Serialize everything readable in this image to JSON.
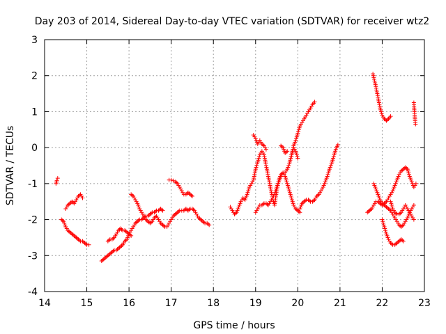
{
  "chart_data": {
    "type": "scatter",
    "title": "Day 203 of 2014, Sidereal Day-to-day VTEC variation (SDTVAR) for receiver wtz2",
    "xlabel": "GPS time / hours",
    "ylabel": "SDTVAR / TECUs",
    "xlim": [
      14,
      23
    ],
    "ylim": [
      -4,
      3
    ],
    "xticks": [
      "14",
      "15",
      "16",
      "17",
      "18",
      "19",
      "20",
      "21",
      "22",
      "23"
    ],
    "yticks": [
      "-4",
      "-3",
      "-2",
      "-1",
      "0",
      "1",
      "2",
      "3"
    ],
    "grid": true,
    "marker": "+",
    "color": "#ff0000",
    "series": [
      {
        "name": "s1",
        "x": [
          14.27,
          14.29,
          14.31
        ],
        "y": [
          -1.0,
          -0.92,
          -0.85
        ]
      },
      {
        "name": "s2",
        "x": [
          14.4,
          14.45,
          14.5,
          14.55,
          14.6,
          14.65,
          14.7,
          14.75,
          14.8,
          14.85,
          14.9,
          14.95,
          15.0,
          15.05
        ],
        "y": [
          -2.0,
          -2.05,
          -2.2,
          -2.3,
          -2.35,
          -2.4,
          -2.45,
          -2.5,
          -2.55,
          -2.6,
          -2.6,
          -2.65,
          -2.7,
          -2.7
        ]
      },
      {
        "name": "s3",
        "x": [
          14.5,
          14.55,
          14.6,
          14.65,
          14.7,
          14.75,
          14.8,
          14.85,
          14.9
        ],
        "y": [
          -1.7,
          -1.6,
          -1.55,
          -1.5,
          -1.55,
          -1.45,
          -1.35,
          -1.3,
          -1.4
        ]
      },
      {
        "name": "s4",
        "x": [
          15.35,
          15.4,
          15.45,
          15.5,
          15.55,
          15.6,
          15.65,
          15.7,
          15.75,
          15.8,
          15.85,
          15.9,
          15.95,
          16.0,
          16.05,
          16.1,
          16.15,
          16.2,
          16.25,
          16.3,
          16.35,
          16.4,
          16.45,
          16.5,
          16.55,
          16.6,
          16.65,
          16.7,
          16.75,
          16.8
        ],
        "y": [
          -3.15,
          -3.1,
          -3.05,
          -3.0,
          -2.95,
          -2.9,
          -2.85,
          -2.85,
          -2.8,
          -2.75,
          -2.7,
          -2.6,
          -2.55,
          -2.4,
          -2.3,
          -2.2,
          -2.1,
          -2.05,
          -2.0,
          -2.0,
          -1.95,
          -1.9,
          -1.9,
          -1.85,
          -1.8,
          -1.8,
          -1.75,
          -1.75,
          -1.7,
          -1.75
        ]
      },
      {
        "name": "s5",
        "x": [
          15.5,
          15.55,
          15.6,
          15.65,
          15.7,
          15.75,
          15.8,
          15.85,
          15.9,
          15.95,
          16.0,
          16.05
        ],
        "y": [
          -2.6,
          -2.55,
          -2.55,
          -2.5,
          -2.4,
          -2.3,
          -2.25,
          -2.3,
          -2.3,
          -2.35,
          -2.4,
          -2.45
        ]
      },
      {
        "name": "s6",
        "x": [
          16.05,
          16.1,
          16.15,
          16.2,
          16.25,
          16.3,
          16.35,
          16.4,
          16.45,
          16.5,
          16.55,
          16.6,
          16.65,
          16.7,
          16.75,
          16.8,
          16.85,
          16.9,
          16.95,
          17.0,
          17.05,
          17.1,
          17.15,
          17.2,
          17.25,
          17.3,
          17.35,
          17.4,
          17.45,
          17.5,
          17.55,
          17.6,
          17.65,
          17.7,
          17.75,
          17.8,
          17.85,
          17.9
        ],
        "y": [
          -1.3,
          -1.35,
          -1.45,
          -1.55,
          -1.7,
          -1.8,
          -1.9,
          -2.0,
          -2.05,
          -2.1,
          -2.05,
          -1.95,
          -1.9,
          -2.0,
          -2.1,
          -2.15,
          -2.2,
          -2.2,
          -2.1,
          -2.0,
          -1.9,
          -1.85,
          -1.8,
          -1.75,
          -1.75,
          -1.75,
          -1.7,
          -1.75,
          -1.7,
          -1.7,
          -1.75,
          -1.85,
          -1.95,
          -2.0,
          -2.05,
          -2.1,
          -2.1,
          -2.15
        ]
      },
      {
        "name": "s7",
        "x": [
          16.95,
          17.0,
          17.05,
          17.1,
          17.15,
          17.2,
          17.25,
          17.3,
          17.35,
          17.4,
          17.45,
          17.5
        ],
        "y": [
          -0.9,
          -0.9,
          -0.92,
          -0.95,
          -1.0,
          -1.1,
          -1.2,
          -1.3,
          -1.3,
          -1.25,
          -1.3,
          -1.35
        ]
      },
      {
        "name": "s8",
        "x": [
          18.4,
          18.45,
          18.5,
          18.55,
          18.6,
          18.65,
          18.7,
          18.75,
          18.8,
          18.85,
          18.9,
          18.95,
          19.0,
          19.05,
          19.1,
          19.15,
          19.2,
          19.25,
          19.3,
          19.35,
          19.4,
          19.45,
          19.5,
          19.55,
          19.6,
          19.65,
          19.7,
          19.75,
          19.8,
          19.85,
          19.9,
          19.95,
          20.0,
          20.05
        ],
        "y": [
          -1.65,
          -1.75,
          -1.85,
          -1.8,
          -1.65,
          -1.5,
          -1.4,
          -1.45,
          -1.3,
          -1.1,
          -1.0,
          -0.9,
          -0.6,
          -0.4,
          -0.2,
          -0.1,
          -0.2,
          -0.5,
          -0.8,
          -1.1,
          -1.4,
          -1.6,
          -1.2,
          -0.9,
          -0.75,
          -0.7,
          -0.8,
          -1.0,
          -1.2,
          -1.4,
          -1.6,
          -1.7,
          -1.75,
          -1.8
        ]
      },
      {
        "name": "s9",
        "x": [
          19.0,
          19.05,
          19.1,
          19.15,
          19.2,
          19.25,
          19.3,
          19.35,
          19.4,
          19.45,
          19.5,
          19.55,
          19.6,
          19.65,
          19.7,
          19.75,
          19.8,
          19.85,
          19.9,
          19.95,
          20.0
        ],
        "y": [
          -1.8,
          -1.7,
          -1.6,
          -1.6,
          -1.55,
          -1.55,
          -1.6,
          -1.5,
          -1.4,
          -1.3,
          -1.1,
          -0.95,
          -0.8,
          -0.7,
          -0.7,
          -0.6,
          -0.45,
          -0.2,
          0.0,
          -0.1,
          -0.3
        ]
      },
      {
        "name": "s10",
        "x": [
          18.95,
          19.0,
          19.05,
          19.1,
          19.15,
          19.2,
          19.25
        ],
        "y": [
          0.35,
          0.25,
          0.1,
          0.2,
          0.1,
          0.05,
          -0.05
        ]
      },
      {
        "name": "s11",
        "x": [
          19.6,
          19.65,
          19.7,
          19.75
        ],
        "y": [
          0.05,
          0.0,
          -0.15,
          -0.1
        ]
      },
      {
        "name": "s12",
        "x": [
          19.85,
          19.9,
          19.95,
          20.0,
          20.05,
          20.1,
          20.15,
          20.2,
          20.25,
          20.3,
          20.35,
          20.4
        ],
        "y": [
          -0.25,
          0.05,
          0.2,
          0.4,
          0.6,
          0.7,
          0.8,
          0.9,
          1.0,
          1.1,
          1.2,
          1.27
        ]
      },
      {
        "name": "s13",
        "x": [
          20.05,
          20.1,
          20.15,
          20.2,
          20.25,
          20.3,
          20.35,
          20.4,
          20.45,
          20.5,
          20.55,
          20.6,
          20.65,
          20.7,
          20.75,
          20.8,
          20.85,
          20.9,
          20.95
        ],
        "y": [
          -1.7,
          -1.55,
          -1.5,
          -1.45,
          -1.45,
          -1.5,
          -1.5,
          -1.45,
          -1.35,
          -1.3,
          -1.2,
          -1.1,
          -0.95,
          -0.8,
          -0.6,
          -0.45,
          -0.25,
          -0.05,
          0.08
        ]
      },
      {
        "name": "s14",
        "x": [
          21.65,
          21.7,
          21.75,
          21.8,
          21.85,
          21.9,
          21.95,
          22.0,
          22.05,
          22.1,
          22.15,
          22.2,
          22.25,
          22.3,
          22.35,
          22.4,
          22.45,
          22.5,
          22.55,
          22.6,
          22.65,
          22.7,
          22.75,
          22.8
        ],
        "y": [
          -1.8,
          -1.75,
          -1.7,
          -1.6,
          -1.5,
          -1.5,
          -1.55,
          -1.6,
          -1.55,
          -1.5,
          -1.4,
          -1.3,
          -1.2,
          -1.05,
          -0.9,
          -0.75,
          -0.65,
          -0.6,
          -0.55,
          -0.6,
          -0.8,
          -0.95,
          -1.1,
          -1.0
        ]
      },
      {
        "name": "s15",
        "x": [
          21.8,
          21.85,
          21.9,
          21.95,
          22.0,
          22.05,
          22.1,
          22.15,
          22.2,
          22.25,
          22.3,
          22.35,
          22.4,
          22.45,
          22.5,
          22.55,
          22.6,
          22.65,
          22.7,
          22.75
        ],
        "y": [
          -1.0,
          -1.15,
          -1.3,
          -1.45,
          -1.55,
          -1.6,
          -1.65,
          -1.7,
          -1.75,
          -1.85,
          -1.95,
          -2.05,
          -2.15,
          -2.2,
          -2.15,
          -2.05,
          -1.95,
          -1.8,
          -1.7,
          -1.6
        ]
      },
      {
        "name": "s16",
        "x": [
          22.0,
          22.05,
          22.1,
          22.15,
          22.2,
          22.25,
          22.3,
          22.35,
          22.4,
          22.45,
          22.5
        ],
        "y": [
          -2.0,
          -2.2,
          -2.4,
          -2.55,
          -2.65,
          -2.7,
          -2.7,
          -2.65,
          -2.6,
          -2.55,
          -2.6
        ]
      },
      {
        "name": "s17",
        "x": [
          22.2,
          22.25,
          22.3,
          22.35,
          22.4,
          22.45,
          22.5,
          22.55,
          22.6,
          22.65,
          22.7,
          22.75
        ],
        "y": [
          -1.5,
          -1.7,
          -1.8,
          -1.85,
          -1.85,
          -1.8,
          -1.7,
          -1.6,
          -1.7,
          -1.8,
          -1.9,
          -2.0
        ]
      },
      {
        "name": "s18",
        "x": [
          21.78,
          21.8,
          21.85,
          21.9,
          21.95,
          22.0,
          22.05,
          22.1,
          22.15,
          22.2
        ],
        "y": [
          2.05,
          1.95,
          1.7,
          1.4,
          1.1,
          0.9,
          0.8,
          0.75,
          0.8,
          0.87
        ]
      },
      {
        "name": "s19",
        "x": [
          22.75,
          22.76,
          22.77,
          22.78,
          22.79
        ],
        "y": [
          1.25,
          1.05,
          0.9,
          0.75,
          0.65
        ]
      }
    ]
  }
}
